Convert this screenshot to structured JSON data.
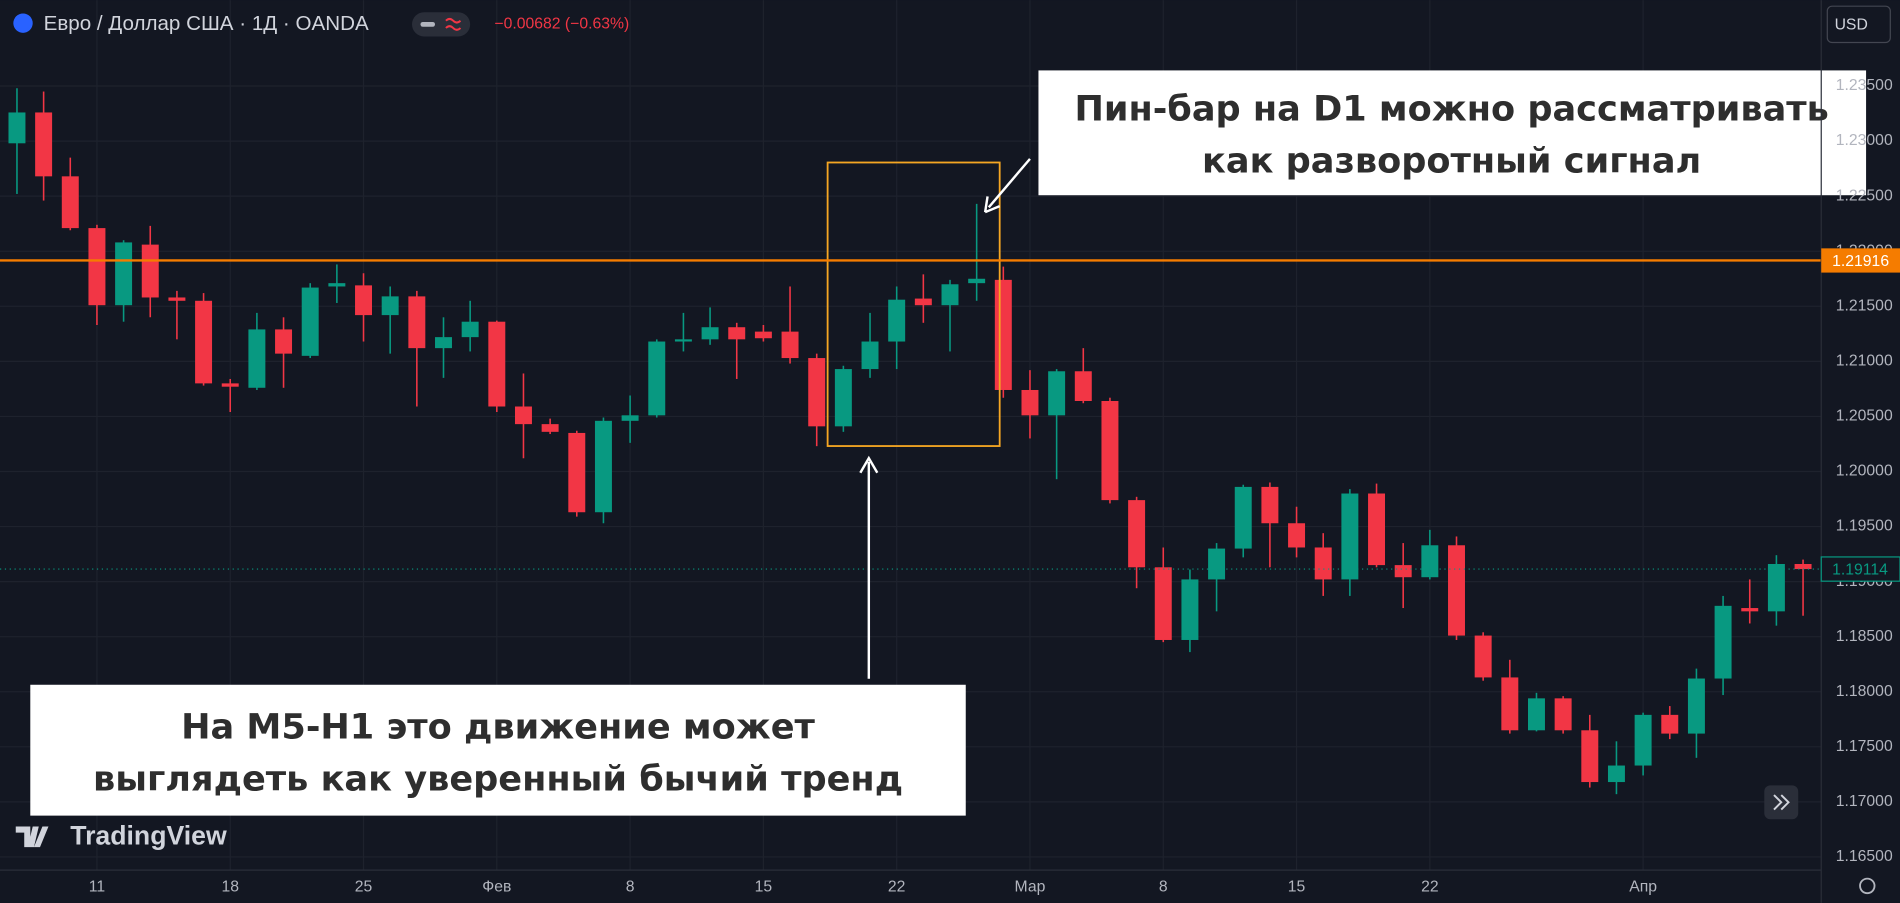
{
  "header": {
    "title": "Евро / Доллар США · 1Д · OANDA",
    "change": "−0.00682 (−0.63%)",
    "currency": "USD"
  },
  "chart_data": {
    "type": "candlestick",
    "categories": [
      null,
      null,
      null,
      "11",
      null,
      null,
      null,
      null,
      "18",
      null,
      null,
      null,
      null,
      "25",
      null,
      null,
      null,
      null,
      "Фев",
      null,
      null,
      null,
      null,
      "8",
      null,
      null,
      null,
      null,
      "15",
      null,
      null,
      null,
      null,
      "22",
      null,
      null,
      null,
      null,
      "Мар",
      null,
      null,
      null,
      null,
      "8",
      null,
      null,
      null,
      null,
      "15",
      null,
      null,
      null,
      null,
      "22",
      null,
      null,
      null,
      null,
      null,
      null,
      null,
      "Апр",
      null,
      null,
      null,
      null,
      null,
      null
    ],
    "open": [
      1.2298,
      1.2326,
      1.2268,
      1.2221,
      1.2151,
      1.2206,
      1.2158,
      1.2155,
      1.208,
      1.2076,
      1.2129,
      1.2105,
      1.2168,
      1.2169,
      1.2142,
      1.2159,
      1.2112,
      1.2122,
      1.2136,
      1.2059,
      1.2043,
      1.2035,
      1.1963,
      1.2046,
      1.2051,
      1.2118,
      1.212,
      1.2131,
      1.2127,
      1.2127,
      1.2103,
      1.2041,
      1.2093,
      1.2118,
      1.2157,
      1.2151,
      1.2171,
      1.2174,
      1.2074,
      1.2051,
      1.2091,
      1.2064,
      1.1974,
      1.1913,
      1.1847,
      1.1902,
      1.193,
      1.1986,
      1.1953,
      1.1931,
      1.1902,
      1.198,
      1.1915,
      1.1904,
      1.1933,
      1.1851,
      1.1813,
      1.1765,
      1.1794,
      1.1765,
      1.1718,
      1.1733,
      1.1779,
      1.1762,
      1.1812,
      1.1876,
      1.1873,
      1.1916
    ],
    "high": [
      1.2348,
      1.2345,
      1.2285,
      1.2224,
      1.221,
      1.2223,
      1.2164,
      1.2162,
      1.2084,
      1.2144,
      1.214,
      1.2171,
      1.2188,
      1.218,
      1.2168,
      1.2164,
      1.214,
      1.2155,
      1.2137,
      1.2089,
      1.2048,
      1.2037,
      1.2049,
      1.2069,
      1.212,
      1.2144,
      1.2149,
      1.2135,
      1.2133,
      1.2168,
      1.2107,
      1.2096,
      1.2144,
      1.2168,
      1.2179,
      1.2174,
      1.2243,
      1.2186,
      1.2092,
      1.2093,
      1.2112,
      1.2067,
      1.1977,
      1.1931,
      1.1911,
      1.1935,
      1.1988,
      1.199,
      1.1968,
      1.1944,
      1.1984,
      1.1989,
      1.1935,
      1.1947,
      1.1941,
      1.1854,
      1.1829,
      1.1799,
      1.1796,
      1.1779,
      1.1755,
      1.1781,
      1.1787,
      1.1821,
      1.1887,
      1.1902,
      1.1924,
      1.192
    ],
    "low": [
      1.2252,
      1.2246,
      1.2219,
      1.2133,
      1.2136,
      1.214,
      1.212,
      1.2078,
      1.2054,
      1.2074,
      1.2076,
      1.2103,
      1.2153,
      1.2118,
      1.2107,
      1.2059,
      1.2085,
      1.2109,
      1.2054,
      1.2012,
      1.2034,
      1.1959,
      1.1953,
      1.2026,
      1.2049,
      1.2109,
      1.2115,
      1.2084,
      1.2118,
      1.2098,
      1.2023,
      1.2036,
      1.2085,
      1.2093,
      1.2135,
      1.2109,
      1.2155,
      1.2067,
      1.203,
      1.1993,
      1.2062,
      1.1971,
      1.1894,
      1.1845,
      1.1836,
      1.1873,
      1.1922,
      1.1913,
      1.1922,
      1.1887,
      1.1887,
      1.1913,
      1.1876,
      1.1902,
      1.1847,
      1.181,
      1.1762,
      1.1764,
      1.1762,
      1.1713,
      1.1707,
      1.1724,
      1.1757,
      1.174,
      1.1797,
      1.1862,
      1.186,
      1.1869
    ],
    "close": [
      1.2326,
      1.2268,
      1.2221,
      1.2151,
      1.2208,
      1.2158,
      1.2155,
      1.208,
      1.2077,
      1.2129,
      1.2107,
      1.2167,
      1.2171,
      1.2142,
      1.2159,
      1.2112,
      1.2122,
      1.2136,
      1.2059,
      1.2043,
      1.2036,
      1.1963,
      1.2046,
      1.2051,
      1.2118,
      1.212,
      1.2131,
      1.212,
      1.2121,
      1.2103,
      1.2041,
      1.2093,
      1.2118,
      1.2156,
      1.2151,
      1.217,
      1.2175,
      1.2074,
      1.2051,
      1.2091,
      1.2064,
      1.1974,
      1.1913,
      1.1847,
      1.1902,
      1.193,
      1.1986,
      1.1953,
      1.1931,
      1.1902,
      1.198,
      1.1915,
      1.1904,
      1.1933,
      1.1851,
      1.1813,
      1.1765,
      1.1794,
      1.1765,
      1.1718,
      1.1733,
      1.1779,
      1.1762,
      1.1812,
      1.1878,
      1.1873,
      1.1916,
      1.19114
    ],
    "up_color": "#089981",
    "down_color": "#f23645",
    "ylim": [
      1.1638,
      1.2428
    ],
    "yticks": [
      {
        "value": 1.165,
        "label": "1.16500"
      },
      {
        "value": 1.17,
        "label": "1.17000"
      },
      {
        "value": 1.175,
        "label": "1.17500"
      },
      {
        "value": 1.18,
        "label": "1.18000"
      },
      {
        "value": 1.185,
        "label": "1.18500"
      },
      {
        "value": 1.19,
        "label": "1.19000"
      },
      {
        "value": 1.195,
        "label": "1.19500"
      },
      {
        "value": 1.2,
        "label": "1.20000"
      },
      {
        "value": 1.205,
        "label": "1.20500"
      },
      {
        "value": 1.21,
        "label": "1.21000"
      },
      {
        "value": 1.215,
        "label": "1.21500"
      },
      {
        "value": 1.22,
        "label": "1.22000"
      },
      {
        "value": 1.225,
        "label": "1.22500"
      },
      {
        "value": 1.23,
        "label": "1.23000"
      },
      {
        "value": 1.235,
        "label": "1.23500"
      }
    ],
    "grid": true,
    "hline": {
      "value": 1.21916,
      "label": "1.21916",
      "color": "#f57c00"
    },
    "last_price": {
      "value": 1.19114,
      "label": "1.19114"
    },
    "annotations": [
      [
        "Пин-бар на D1 можно рассматривать",
        "как разворотный сигнал"
      ],
      [
        "На M5-H1 это движение может",
        "выглядеть как уверенный бычий тренд"
      ]
    ]
  },
  "watermark": "TradingView"
}
